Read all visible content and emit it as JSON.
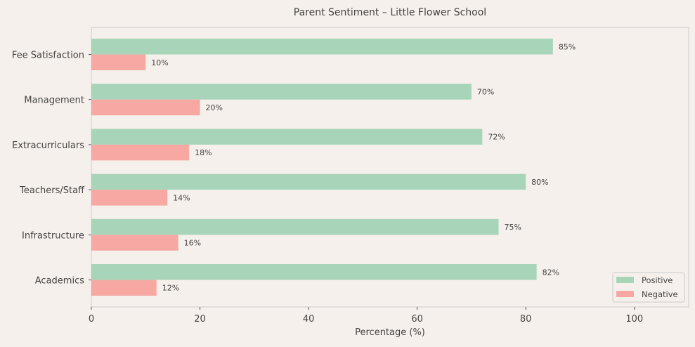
{
  "chart_data": {
    "type": "bar",
    "orientation": "horizontal",
    "title": "Parent Sentiment – Little Flower School",
    "xlabel": "Percentage (%)",
    "ylabel": "",
    "xlim": [
      0,
      110
    ],
    "xticks": [
      0,
      20,
      40,
      60,
      80,
      100
    ],
    "grid": false,
    "legend_position": "bottom-right",
    "categories": [
      "Academics",
      "Infrastructure",
      "Teachers/Staff",
      "Extracurriculars",
      "Management",
      "Fee Satisfaction"
    ],
    "series": [
      {
        "name": "Positive",
        "color": "#a8d5b9",
        "values": [
          82,
          75,
          80,
          72,
          70,
          85
        ]
      },
      {
        "name": "Negative",
        "color": "#f7a8a3",
        "values": [
          12,
          16,
          14,
          18,
          20,
          10
        ]
      }
    ],
    "value_label_suffix": "%"
  }
}
